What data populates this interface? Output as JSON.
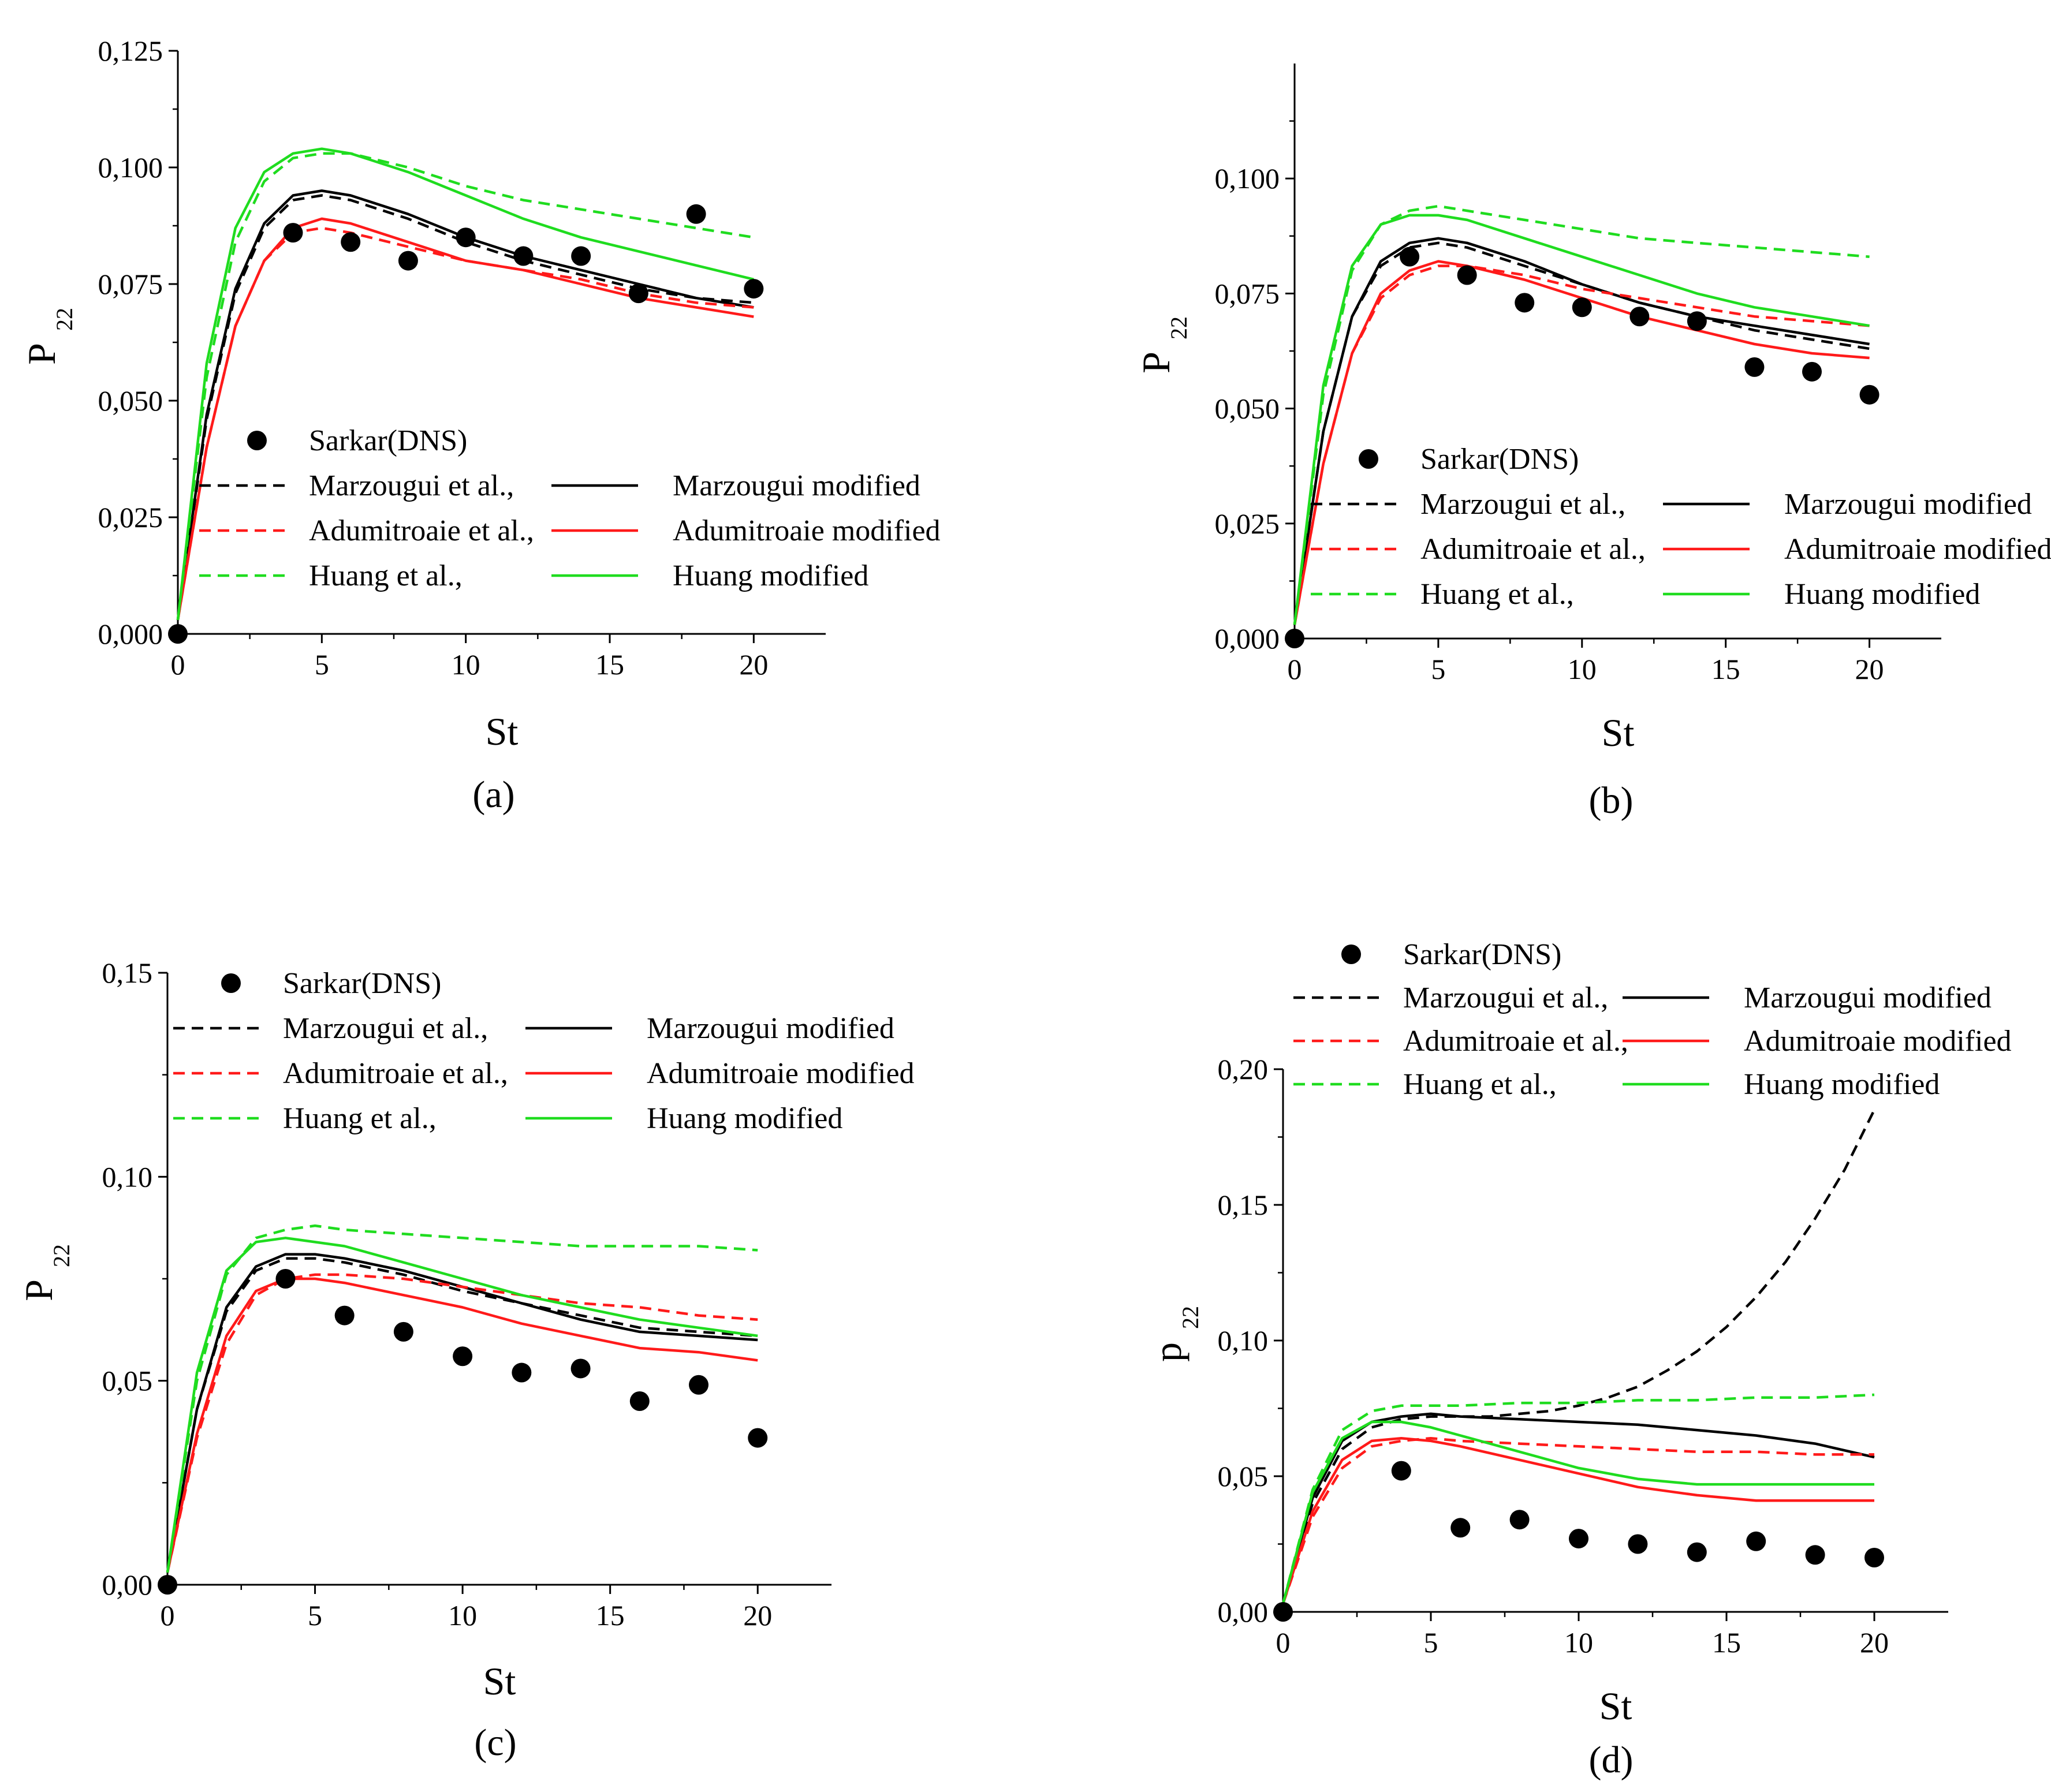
{
  "figure": {
    "legend": {
      "dns": "Sarkar(DNS)",
      "marz_orig": "Marzougui et al.,",
      "marz_mod": "Marzougui modified",
      "adum_orig": "Adumitroaie et al.,",
      "adum_mod": "Adumitroaie modified",
      "huang_orig": "Huang et al.,",
      "huang_mod": "Huang modified"
    },
    "colors": {
      "marz": "#000000",
      "adum": "#ff1a1a",
      "huang": "#1fdc1f",
      "dns": "#000000"
    }
  },
  "chart_data": [
    {
      "id": "a",
      "type": "line",
      "caption": "(a)",
      "xlabel": "St",
      "ylabel_main": "P",
      "ylabel_sub": "22",
      "xlim": [
        0,
        22.5
      ],
      "ylim": [
        0,
        0.125
      ],
      "xticks": [
        "0",
        "5",
        "10",
        "15",
        "20"
      ],
      "yticks": [
        "0,000",
        "0,025",
        "0,050",
        "0,075",
        "0,100",
        "0,125"
      ],
      "dns_points": {
        "x": [
          0,
          4,
          6,
          8,
          10,
          12,
          14,
          16,
          18,
          20
        ],
        "y": [
          0.0,
          0.086,
          0.084,
          0.08,
          0.085,
          0.081,
          0.081,
          0.073,
          0.09,
          0.074
        ]
      },
      "series": [
        {
          "name": "Marzougui et al.,",
          "style": "dashed",
          "color": "marz",
          "x": [
            0,
            1,
            2,
            3,
            4,
            5,
            6,
            8,
            10,
            12,
            14,
            16,
            18,
            20
          ],
          "y": [
            0.003,
            0.046,
            0.073,
            0.087,
            0.093,
            0.094,
            0.093,
            0.089,
            0.084,
            0.08,
            0.077,
            0.074,
            0.072,
            0.071
          ]
        },
        {
          "name": "Marzougui modified",
          "style": "solid",
          "color": "marz",
          "x": [
            0,
            1,
            2,
            3,
            4,
            5,
            6,
            8,
            10,
            12,
            14,
            16,
            18,
            20
          ],
          "y": [
            0.003,
            0.047,
            0.074,
            0.088,
            0.094,
            0.095,
            0.094,
            0.09,
            0.085,
            0.081,
            0.078,
            0.075,
            0.072,
            0.07
          ]
        },
        {
          "name": "Adumitroaie et al.,",
          "style": "dashed",
          "color": "adum",
          "x": [
            0,
            1,
            2,
            3,
            4,
            5,
            6,
            8,
            10,
            12,
            14,
            16,
            18,
            20
          ],
          "y": [
            0.003,
            0.04,
            0.066,
            0.08,
            0.086,
            0.087,
            0.086,
            0.083,
            0.08,
            0.078,
            0.076,
            0.073,
            0.071,
            0.07
          ]
        },
        {
          "name": "Adumitroaie modified",
          "style": "solid",
          "color": "adum",
          "x": [
            0,
            1,
            2,
            3,
            4,
            5,
            6,
            8,
            10,
            12,
            14,
            16,
            18,
            20
          ],
          "y": [
            0.003,
            0.04,
            0.066,
            0.08,
            0.087,
            0.089,
            0.088,
            0.084,
            0.08,
            0.078,
            0.075,
            0.072,
            0.07,
            0.068
          ]
        },
        {
          "name": "Huang et al.,",
          "style": "dashed",
          "color": "huang",
          "x": [
            0,
            1,
            2,
            3,
            4,
            5,
            6,
            8,
            10,
            12,
            14,
            16,
            18,
            20
          ],
          "y": [
            0.003,
            0.055,
            0.084,
            0.097,
            0.102,
            0.103,
            0.103,
            0.1,
            0.096,
            0.093,
            0.091,
            0.089,
            0.087,
            0.085
          ]
        },
        {
          "name": "Huang modified",
          "style": "solid",
          "color": "huang",
          "x": [
            0,
            1,
            2,
            3,
            4,
            5,
            6,
            8,
            10,
            12,
            14,
            16,
            18,
            20
          ],
          "y": [
            0.003,
            0.058,
            0.087,
            0.099,
            0.103,
            0.104,
            0.103,
            0.099,
            0.094,
            0.089,
            0.085,
            0.082,
            0.079,
            0.076
          ]
        }
      ]
    },
    {
      "id": "b",
      "type": "line",
      "caption": "(b)",
      "xlabel": "St",
      "ylabel_main": "P",
      "ylabel_sub": "22",
      "xlim": [
        0,
        22.5
      ],
      "ylim": [
        0,
        0.125
      ],
      "xticks": [
        "0",
        "5",
        "10",
        "15",
        "20"
      ],
      "yticks": [
        "0,000",
        "0,025",
        "0,050",
        "0,075",
        "0,100"
      ],
      "dns_points": {
        "x": [
          0,
          4,
          6,
          8,
          10,
          12,
          14,
          16,
          18,
          20
        ],
        "y": [
          0.0,
          0.083,
          0.079,
          0.073,
          0.072,
          0.07,
          0.069,
          0.059,
          0.058,
          0.053
        ]
      },
      "series": [
        {
          "name": "Marzougui et al.,",
          "style": "dashed",
          "color": "marz",
          "x": [
            0,
            1,
            2,
            3,
            4,
            5,
            6,
            8,
            10,
            12,
            14,
            16,
            18,
            20
          ],
          "y": [
            0.003,
            0.045,
            0.07,
            0.081,
            0.085,
            0.086,
            0.085,
            0.081,
            0.077,
            0.073,
            0.07,
            0.067,
            0.065,
            0.063
          ]
        },
        {
          "name": "Marzougui modified",
          "style": "solid",
          "color": "marz",
          "x": [
            0,
            1,
            2,
            3,
            4,
            5,
            6,
            8,
            10,
            12,
            14,
            16,
            18,
            20
          ],
          "y": [
            0.003,
            0.045,
            0.07,
            0.082,
            0.086,
            0.087,
            0.086,
            0.082,
            0.077,
            0.073,
            0.07,
            0.068,
            0.066,
            0.064
          ]
        },
        {
          "name": "Adumitroaie et al.,",
          "style": "dashed",
          "color": "adum",
          "x": [
            0,
            1,
            2,
            3,
            4,
            5,
            6,
            8,
            10,
            12,
            14,
            16,
            18,
            20
          ],
          "y": [
            0.003,
            0.038,
            0.062,
            0.074,
            0.079,
            0.081,
            0.081,
            0.079,
            0.076,
            0.074,
            0.072,
            0.07,
            0.069,
            0.068
          ]
        },
        {
          "name": "Adumitroaie modified",
          "style": "solid",
          "color": "adum",
          "x": [
            0,
            1,
            2,
            3,
            4,
            5,
            6,
            8,
            10,
            12,
            14,
            16,
            18,
            20
          ],
          "y": [
            0.003,
            0.038,
            0.062,
            0.075,
            0.08,
            0.082,
            0.081,
            0.078,
            0.074,
            0.07,
            0.067,
            0.064,
            0.062,
            0.061
          ]
        },
        {
          "name": "Huang et al.,",
          "style": "dashed",
          "color": "huang",
          "x": [
            0,
            1,
            2,
            3,
            4,
            5,
            6,
            8,
            10,
            12,
            14,
            16,
            18,
            20
          ],
          "y": [
            0.003,
            0.053,
            0.08,
            0.09,
            0.093,
            0.094,
            0.093,
            0.091,
            0.089,
            0.087,
            0.086,
            0.085,
            0.084,
            0.083
          ]
        },
        {
          "name": "Huang modified",
          "style": "solid",
          "color": "huang",
          "x": [
            0,
            1,
            2,
            3,
            4,
            5,
            6,
            8,
            10,
            12,
            14,
            16,
            18,
            20
          ],
          "y": [
            0.003,
            0.055,
            0.081,
            0.09,
            0.092,
            0.092,
            0.091,
            0.087,
            0.083,
            0.079,
            0.075,
            0.072,
            0.07,
            0.068
          ]
        }
      ]
    },
    {
      "id": "c",
      "type": "line",
      "caption": "(c)",
      "xlabel": "St",
      "ylabel_main": "P",
      "ylabel_sub": "22",
      "xlim": [
        0,
        22.5
      ],
      "ylim": [
        0,
        0.15
      ],
      "xticks": [
        "0",
        "5",
        "10",
        "15",
        "20"
      ],
      "yticks": [
        "0,00",
        "0,05",
        "0,10",
        "0,15"
      ],
      "dns_points": {
        "x": [
          0,
          4,
          6,
          8,
          10,
          12,
          14,
          16,
          18,
          20
        ],
        "y": [
          0.0,
          0.075,
          0.066,
          0.062,
          0.056,
          0.052,
          0.053,
          0.045,
          0.049,
          0.036
        ]
      },
      "series": [
        {
          "name": "Marzougui et al.,",
          "style": "dashed",
          "color": "marz",
          "x": [
            0,
            1,
            2,
            3,
            4,
            5,
            6,
            8,
            10,
            12,
            14,
            16,
            18,
            20
          ],
          "y": [
            0.003,
            0.043,
            0.067,
            0.077,
            0.08,
            0.08,
            0.079,
            0.076,
            0.072,
            0.069,
            0.066,
            0.063,
            0.062,
            0.061
          ]
        },
        {
          "name": "Marzougui modified",
          "style": "solid",
          "color": "marz",
          "x": [
            0,
            1,
            2,
            3,
            4,
            5,
            6,
            8,
            10,
            12,
            14,
            16,
            18,
            20
          ],
          "y": [
            0.003,
            0.043,
            0.068,
            0.078,
            0.081,
            0.081,
            0.08,
            0.077,
            0.073,
            0.069,
            0.065,
            0.062,
            0.061,
            0.06
          ]
        },
        {
          "name": "Adumitroaie et al.,",
          "style": "dashed",
          "color": "adum",
          "x": [
            0,
            1,
            2,
            3,
            4,
            5,
            6,
            8,
            10,
            12,
            14,
            16,
            18,
            20
          ],
          "y": [
            0.003,
            0.036,
            0.059,
            0.071,
            0.075,
            0.076,
            0.076,
            0.075,
            0.073,
            0.071,
            0.069,
            0.068,
            0.066,
            0.065
          ]
        },
        {
          "name": "Adumitroaie modified",
          "style": "solid",
          "color": "adum",
          "x": [
            0,
            1,
            2,
            3,
            4,
            5,
            6,
            8,
            10,
            12,
            14,
            16,
            18,
            20
          ],
          "y": [
            0.003,
            0.037,
            0.061,
            0.072,
            0.075,
            0.075,
            0.074,
            0.071,
            0.068,
            0.064,
            0.061,
            0.058,
            0.057,
            0.055
          ]
        },
        {
          "name": "Huang et al.,",
          "style": "dashed",
          "color": "huang",
          "x": [
            0,
            1,
            2,
            3,
            4,
            5,
            6,
            8,
            10,
            12,
            14,
            16,
            18,
            20
          ],
          "y": [
            0.003,
            0.05,
            0.076,
            0.085,
            0.087,
            0.088,
            0.087,
            0.086,
            0.085,
            0.084,
            0.083,
            0.083,
            0.083,
            0.082
          ]
        },
        {
          "name": "Huang modified",
          "style": "solid",
          "color": "huang",
          "x": [
            0,
            1,
            2,
            3,
            4,
            5,
            6,
            8,
            10,
            12,
            14,
            16,
            18,
            20
          ],
          "y": [
            0.003,
            0.052,
            0.077,
            0.084,
            0.085,
            0.084,
            0.083,
            0.079,
            0.075,
            0.071,
            0.068,
            0.065,
            0.063,
            0.061
          ]
        }
      ]
    },
    {
      "id": "d",
      "type": "line",
      "caption": "(d)",
      "xlabel": "St",
      "ylabel_main": "p",
      "ylabel_sub": "22",
      "xlim": [
        0,
        22.5
      ],
      "ylim": [
        0,
        0.2
      ],
      "xticks": [
        "0",
        "5",
        "10",
        "15",
        "20"
      ],
      "yticks": [
        "0,00",
        "0,05",
        "0,10",
        "0,15",
        "0,20"
      ],
      "dns_points": {
        "x": [
          0,
          4,
          6,
          8,
          10,
          12,
          14,
          16,
          18,
          20
        ],
        "y": [
          0.0,
          0.052,
          0.031,
          0.034,
          0.027,
          0.025,
          0.022,
          0.026,
          0.021,
          0.02
        ]
      },
      "series": [
        {
          "name": "Marzougui et al.,",
          "style": "dashed",
          "color": "marz",
          "x": [
            0,
            1,
            2,
            3,
            4,
            5,
            6,
            7,
            8,
            9,
            10,
            11,
            12,
            13,
            14,
            15,
            16,
            17,
            18,
            19,
            20
          ],
          "y": [
            0.003,
            0.04,
            0.06,
            0.068,
            0.071,
            0.072,
            0.072,
            0.072,
            0.073,
            0.074,
            0.076,
            0.079,
            0.083,
            0.089,
            0.096,
            0.105,
            0.116,
            0.129,
            0.145,
            0.163,
            0.185
          ]
        },
        {
          "name": "Marzougui modified",
          "style": "solid",
          "color": "marz",
          "x": [
            0,
            1,
            2,
            3,
            4,
            5,
            6,
            8,
            10,
            12,
            14,
            16,
            18,
            20
          ],
          "y": [
            0.003,
            0.042,
            0.063,
            0.07,
            0.072,
            0.073,
            0.072,
            0.071,
            0.07,
            0.069,
            0.067,
            0.065,
            0.062,
            0.057
          ]
        },
        {
          "name": "Adumitroaie et al.,",
          "style": "dashed",
          "color": "adum",
          "x": [
            0,
            1,
            2,
            3,
            4,
            5,
            6,
            8,
            10,
            12,
            14,
            16,
            18,
            20
          ],
          "y": [
            0.003,
            0.035,
            0.053,
            0.061,
            0.063,
            0.064,
            0.063,
            0.062,
            0.061,
            0.06,
            0.059,
            0.059,
            0.058,
            0.058
          ]
        },
        {
          "name": "Adumitroaie modified",
          "style": "solid",
          "color": "adum",
          "x": [
            0,
            1,
            2,
            3,
            4,
            5,
            6,
            8,
            10,
            12,
            14,
            16,
            18,
            20
          ],
          "y": [
            0.003,
            0.037,
            0.056,
            0.063,
            0.064,
            0.063,
            0.061,
            0.056,
            0.051,
            0.046,
            0.043,
            0.041,
            0.041,
            0.041
          ]
        },
        {
          "name": "Huang et al.,",
          "style": "dashed",
          "color": "huang",
          "x": [
            0,
            1,
            2,
            3,
            4,
            5,
            6,
            8,
            10,
            12,
            14,
            16,
            18,
            20
          ],
          "y": [
            0.003,
            0.045,
            0.067,
            0.074,
            0.076,
            0.076,
            0.076,
            0.077,
            0.077,
            0.078,
            0.078,
            0.079,
            0.079,
            0.08
          ]
        },
        {
          "name": "Huang modified",
          "style": "solid",
          "color": "huang",
          "x": [
            0,
            1,
            2,
            3,
            4,
            5,
            6,
            8,
            10,
            12,
            14,
            16,
            18,
            20
          ],
          "y": [
            0.003,
            0.044,
            0.064,
            0.07,
            0.07,
            0.068,
            0.065,
            0.059,
            0.053,
            0.049,
            0.047,
            0.047,
            0.047,
            0.047
          ]
        }
      ]
    }
  ]
}
